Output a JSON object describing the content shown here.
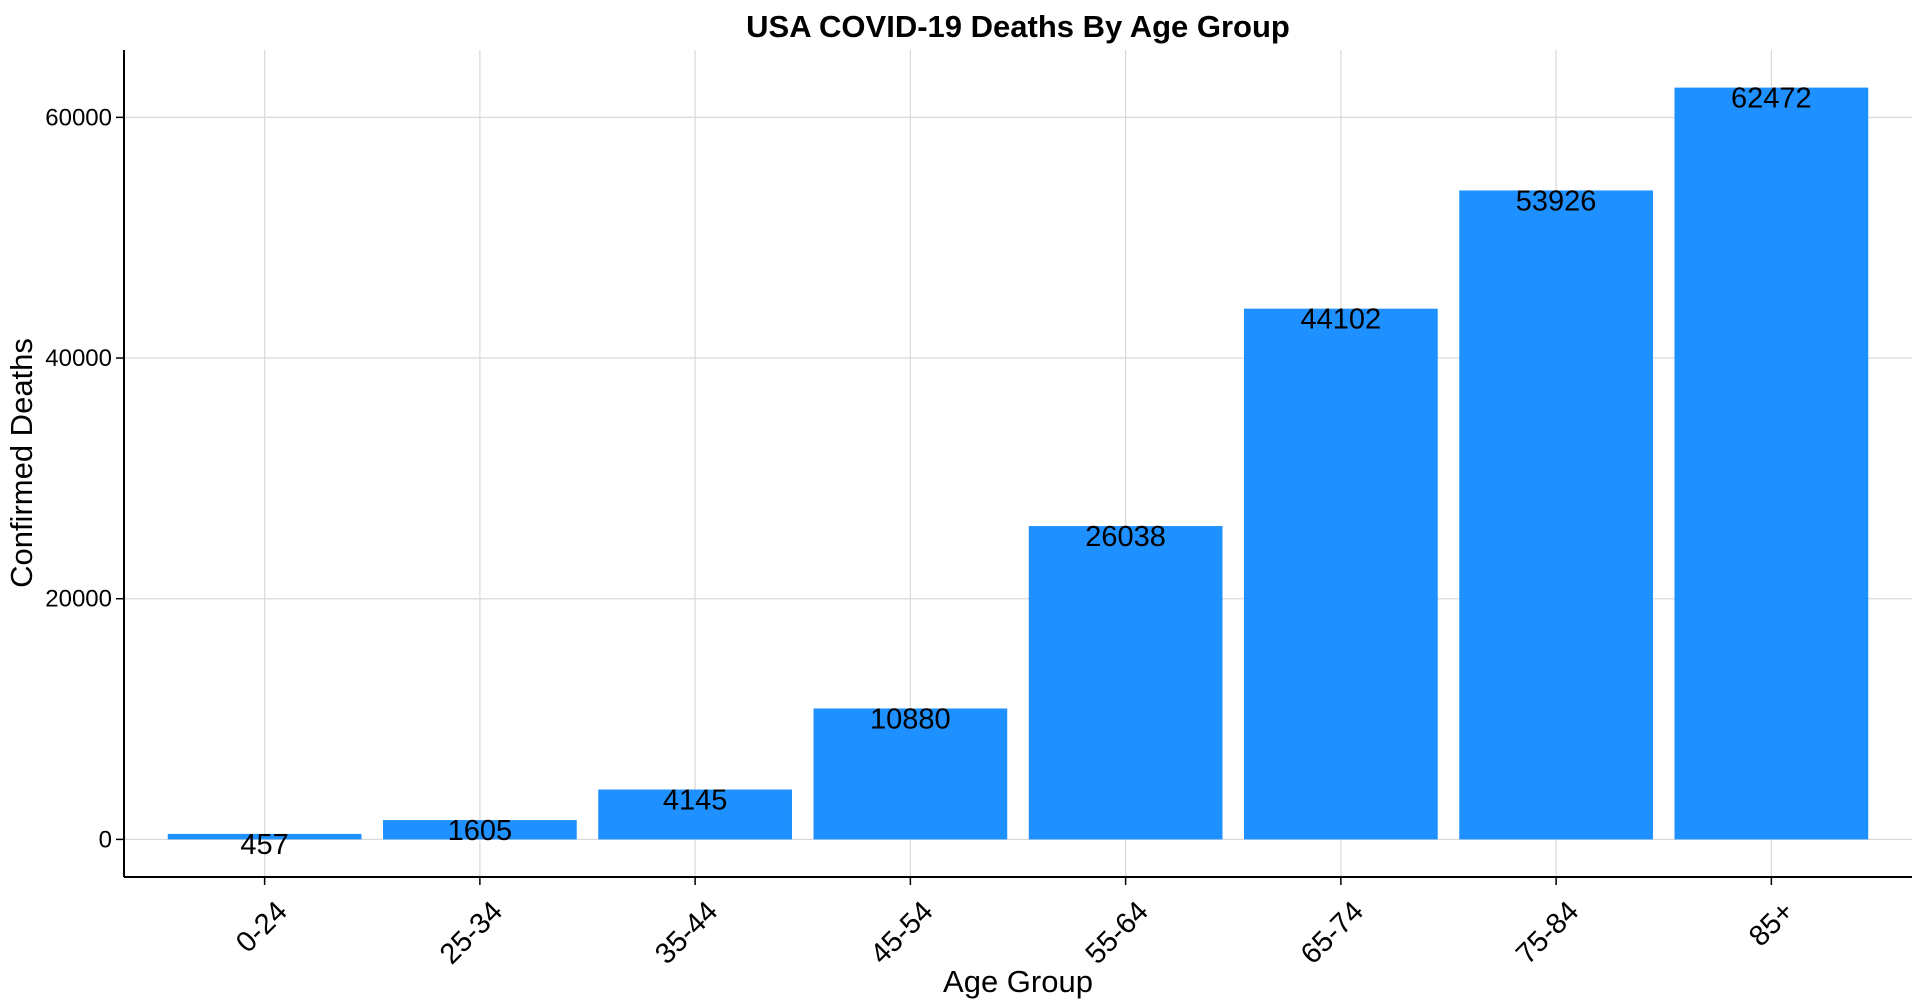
{
  "chart_data": {
    "type": "bar",
    "title": "USA COVID-19 Deaths By Age Group",
    "xlabel": "Age Group",
    "ylabel": "Confirmed Deaths",
    "categories": [
      "0-24",
      "25-34",
      "35-44",
      "45-54",
      "55-64",
      "65-74",
      "75-84",
      "85+"
    ],
    "values": [
      457,
      1605,
      4145,
      10880,
      26038,
      44102,
      53926,
      62472
    ],
    "data_labels": [
      "457",
      "1605",
      "4145",
      "10880",
      "26038",
      "44102",
      "53926",
      "62472"
    ],
    "yticks": [
      0,
      20000,
      40000,
      60000
    ],
    "ytick_labels": [
      "0",
      "20000",
      "40000",
      "60000"
    ],
    "ylim": [
      -3125,
      65597
    ],
    "grid": true,
    "bar_color": "#1E90FF"
  }
}
